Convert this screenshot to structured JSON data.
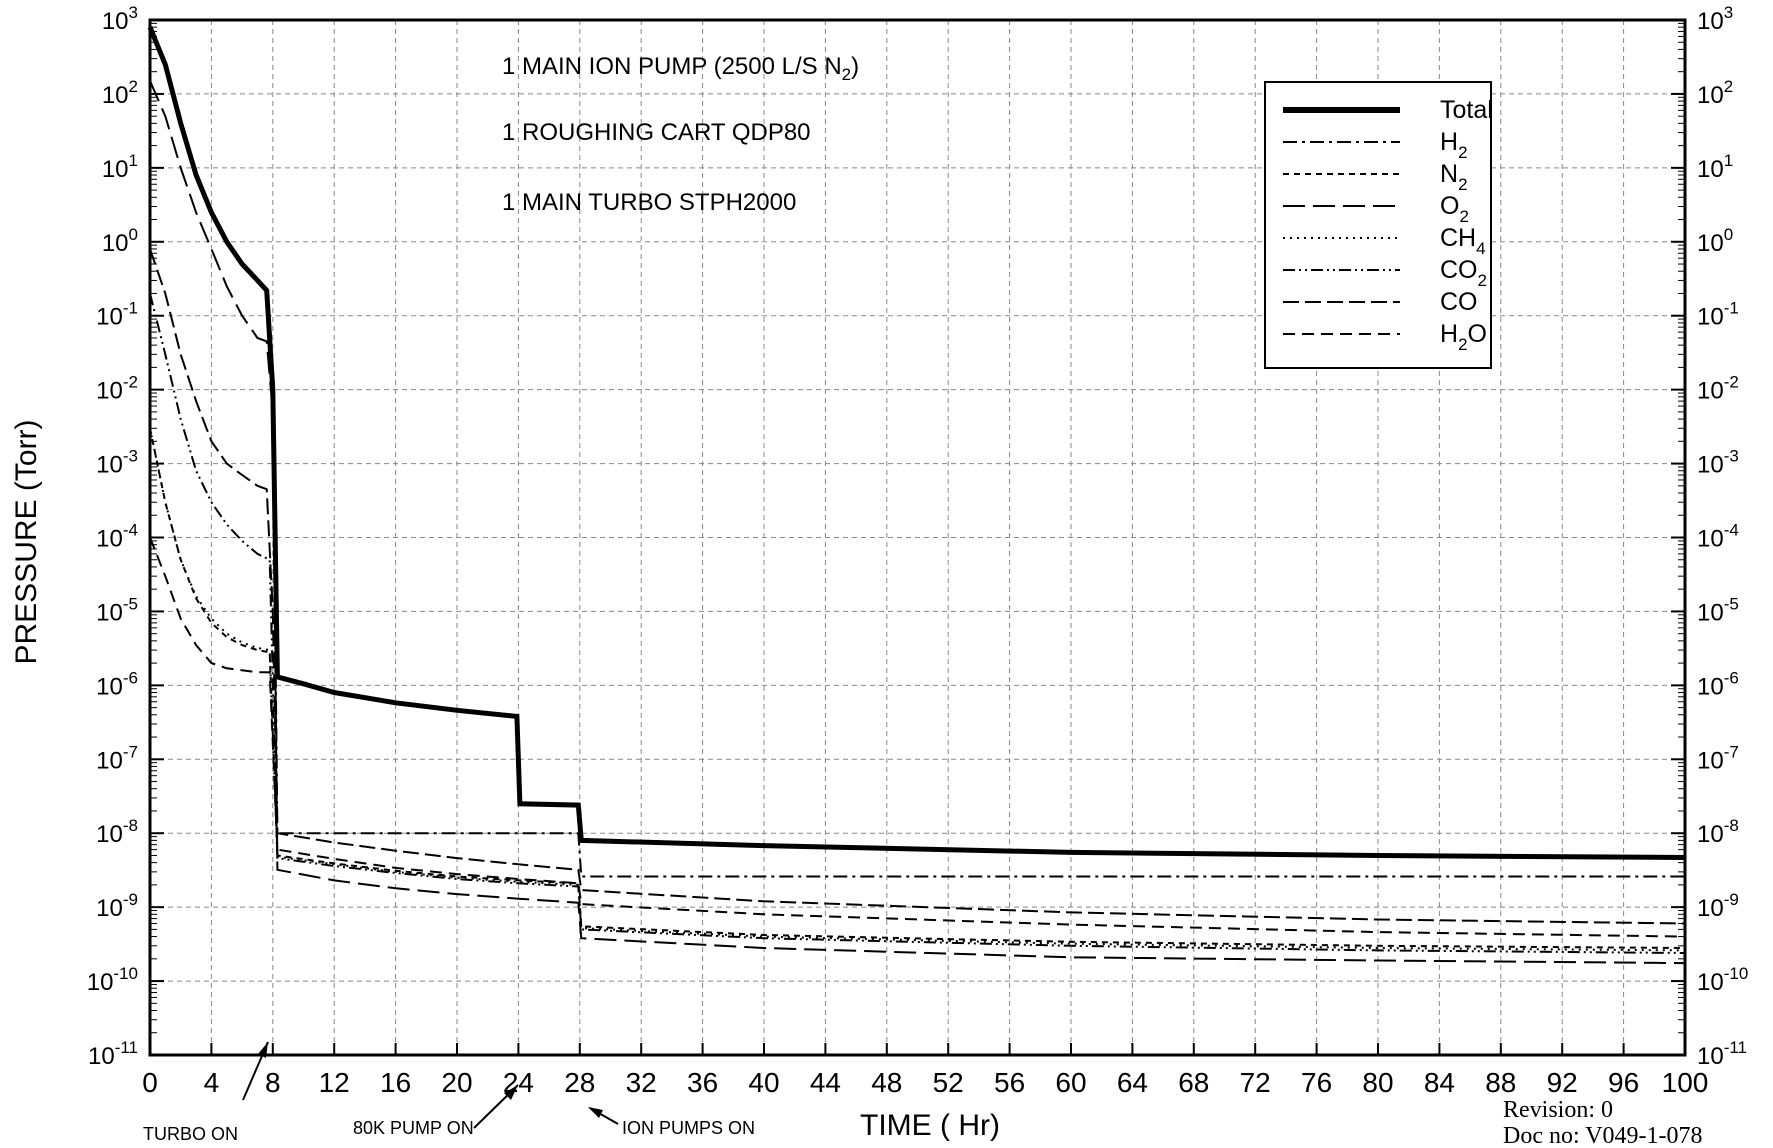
{
  "chart_data": {
    "type": "line",
    "y_scale": "log",
    "ylabel": "PRESSURE (Torr)",
    "xlabel": "TIME ( Hr)",
    "xlim": [
      0,
      100
    ],
    "ylim": [
      1e-11,
      1000
    ],
    "grid": true,
    "legend_position": "top-right",
    "x_ticks": [
      "0",
      "4",
      "8",
      "12",
      "16",
      "20",
      "24",
      "28",
      "32",
      "36",
      "40",
      "44",
      "48",
      "52",
      "56",
      "60",
      "64",
      "68",
      "72",
      "76",
      "80",
      "84",
      "88",
      "92",
      "96",
      "100"
    ],
    "y_ticks": [
      {
        "base": "10",
        "exp": "3"
      },
      {
        "base": "10",
        "exp": "2"
      },
      {
        "base": "10",
        "exp": "1"
      },
      {
        "base": "10",
        "exp": "0"
      },
      {
        "base": "10",
        "exp": "-1"
      },
      {
        "base": "10",
        "exp": "-2"
      },
      {
        "base": "10",
        "exp": "-3"
      },
      {
        "base": "10",
        "exp": "-4"
      },
      {
        "base": "10",
        "exp": "-5"
      },
      {
        "base": "10",
        "exp": "-6"
      },
      {
        "base": "10",
        "exp": "-7"
      },
      {
        "base": "10",
        "exp": "-8"
      },
      {
        "base": "10",
        "exp": "-9"
      },
      {
        "base": "10",
        "exp": "-10"
      },
      {
        "base": "10",
        "exp": "-11"
      }
    ],
    "notes": {
      "line1_pre": "1 MAIN ION PUMP (2500 L/S N",
      "line1_sub": "2",
      "line1_post": ")",
      "line2": "1 ROUGHING CART QDP80",
      "line3": "1 MAIN TURBO STPH2000"
    },
    "event_labels": {
      "turbo": "TURBO ON",
      "pump80k": "80K PUMP ON",
      "ionpumps": "ION PUMPS ON"
    },
    "revision": "Revision: 0",
    "doc_no": "Doc no: V049-1-078",
    "series": [
      {
        "name": "Total",
        "base": "Total",
        "sub": "",
        "style": "thick",
        "points": [
          [
            0,
            800
          ],
          [
            1,
            250
          ],
          [
            2,
            40
          ],
          [
            3,
            8
          ],
          [
            4,
            2.5
          ],
          [
            5,
            1
          ],
          [
            6,
            0.5
          ],
          [
            7,
            0.3
          ],
          [
            7.6,
            0.22
          ],
          [
            8,
            0.01
          ],
          [
            8.3,
            1.3e-06
          ],
          [
            10,
            1.05e-06
          ],
          [
            12,
            8e-07
          ],
          [
            16,
            5.8e-07
          ],
          [
            20,
            4.6e-07
          ],
          [
            23.9,
            3.8e-07
          ],
          [
            24.1,
            2.5e-08
          ],
          [
            27.9,
            2.4e-08
          ],
          [
            28.1,
            8e-09
          ],
          [
            40,
            6.8e-09
          ],
          [
            60,
            5.5e-09
          ],
          [
            80,
            5e-09
          ],
          [
            100,
            4.7e-09
          ]
        ]
      },
      {
        "name": "H2",
        "base": "H",
        "sub": "2",
        "style": "dashdot",
        "points": [
          [
            0,
            800
          ],
          [
            1,
            250
          ],
          [
            2,
            40
          ],
          [
            3,
            8
          ],
          [
            4,
            2.5
          ],
          [
            5,
            1
          ],
          [
            6,
            0.5
          ],
          [
            7,
            0.3
          ],
          [
            7.6,
            0.22
          ],
          [
            8,
            0.01
          ],
          [
            8.3,
            1e-08
          ],
          [
            24,
            1e-08
          ],
          [
            27.9,
            1e-08
          ],
          [
            28.1,
            2.6e-09
          ],
          [
            100,
            2.6e-09
          ]
        ]
      },
      {
        "name": "N2",
        "base": "N",
        "sub": "2",
        "style": "shortdash",
        "points": [
          [
            0,
            0.003
          ],
          [
            1,
            0.0003
          ],
          [
            2,
            5e-05
          ],
          [
            3,
            1.5e-05
          ],
          [
            4,
            7e-06
          ],
          [
            5,
            4.5e-06
          ],
          [
            6,
            3.5e-06
          ],
          [
            7,
            3e-06
          ],
          [
            7.8,
            2.8e-06
          ],
          [
            8.3,
            5e-09
          ],
          [
            12,
            3.9e-09
          ],
          [
            16,
            3.1e-09
          ],
          [
            20,
            2.6e-09
          ],
          [
            24,
            2.3e-09
          ],
          [
            27.9,
            2.1e-09
          ],
          [
            28.1,
            5.5e-10
          ],
          [
            40,
            4.2e-10
          ],
          [
            60,
            3.4e-10
          ],
          [
            80,
            3e-10
          ],
          [
            100,
            2.8e-10
          ]
        ]
      },
      {
        "name": "O2",
        "base": "O",
        "sub": "2",
        "style": "longdash",
        "points": [
          [
            0,
            150
          ],
          [
            1,
            50
          ],
          [
            2,
            10
          ],
          [
            3,
            2.5
          ],
          [
            4,
            0.8
          ],
          [
            5,
            0.25
          ],
          [
            6,
            0.1
          ],
          [
            7,
            0.05
          ],
          [
            7.6,
            0.045
          ],
          [
            8,
            0.005
          ],
          [
            8.3,
            3.2e-09
          ],
          [
            12,
            2.3e-09
          ],
          [
            16,
            1.8e-09
          ],
          [
            20,
            1.5e-09
          ],
          [
            24,
            1.3e-09
          ],
          [
            27.9,
            1.15e-09
          ],
          [
            28.1,
            3.8e-10
          ],
          [
            40,
            2.8e-10
          ],
          [
            60,
            2.1e-10
          ],
          [
            80,
            1.9e-10
          ],
          [
            100,
            1.75e-10
          ]
        ]
      },
      {
        "name": "CH4",
        "base": "CH",
        "sub": "4",
        "style": "dotted",
        "points": [
          [
            0,
            0.003
          ],
          [
            1,
            0.0003
          ],
          [
            2,
            5e-05
          ],
          [
            3,
            1.6e-05
          ],
          [
            4,
            8e-06
          ],
          [
            5,
            5e-06
          ],
          [
            6,
            3.8e-06
          ],
          [
            7,
            3.2e-06
          ],
          [
            7.8,
            3e-06
          ],
          [
            8.3,
            4.8e-09
          ],
          [
            12,
            3.8e-09
          ],
          [
            16,
            3e-09
          ],
          [
            20,
            2.5e-09
          ],
          [
            24,
            2.2e-09
          ],
          [
            27.9,
            2e-09
          ],
          [
            28.1,
            5.2e-10
          ],
          [
            40,
            4e-10
          ],
          [
            60,
            3.2e-10
          ],
          [
            80,
            2.8e-10
          ],
          [
            100,
            2.6e-10
          ]
        ]
      },
      {
        "name": "CO2",
        "base": "CO",
        "sub": "2",
        "style": "dashdotdot",
        "points": [
          [
            0,
            0.2
          ],
          [
            1,
            0.03
          ],
          [
            2,
            0.004
          ],
          [
            3,
            0.0008
          ],
          [
            4,
            0.0003
          ],
          [
            5,
            0.00015
          ],
          [
            6,
            9e-05
          ],
          [
            7,
            6e-05
          ],
          [
            7.8,
            5e-05
          ],
          [
            8.3,
            4.6e-09
          ],
          [
            12,
            3.6e-09
          ],
          [
            16,
            2.9e-09
          ],
          [
            20,
            2.4e-09
          ],
          [
            24,
            2.1e-09
          ],
          [
            27.9,
            1.9e-09
          ],
          [
            28.1,
            5e-10
          ],
          [
            40,
            3.8e-10
          ],
          [
            60,
            3e-10
          ],
          [
            80,
            2.6e-10
          ],
          [
            100,
            2.4e-10
          ]
        ]
      },
      {
        "name": "CO",
        "base": "CO",
        "sub": "",
        "style": "meddash",
        "points": [
          [
            0,
            0.8
          ],
          [
            1,
            0.2
          ],
          [
            2,
            0.03
          ],
          [
            3,
            0.007
          ],
          [
            4,
            0.002
          ],
          [
            5,
            0.001
          ],
          [
            6,
            0.0007
          ],
          [
            7,
            0.0005
          ],
          [
            7.6,
            0.00045
          ],
          [
            8,
            1e-05
          ],
          [
            8.3,
            1e-08
          ],
          [
            12,
            7.5e-09
          ],
          [
            16,
            5.8e-09
          ],
          [
            20,
            4.6e-09
          ],
          [
            24,
            3.8e-09
          ],
          [
            27.9,
            3.2e-09
          ],
          [
            28.1,
            1.7e-09
          ],
          [
            40,
            1.2e-09
          ],
          [
            60,
            8.5e-10
          ],
          [
            80,
            6.8e-10
          ],
          [
            100,
            6e-10
          ]
        ]
      },
      {
        "name": "H2O",
        "base": "H",
        "sub": "2",
        "post": "O",
        "style": "dashed",
        "points": [
          [
            0,
            0.0001
          ],
          [
            1,
            3e-05
          ],
          [
            2,
            8e-06
          ],
          [
            3,
            3.5e-06
          ],
          [
            4,
            2e-06
          ],
          [
            5,
            1.7e-06
          ],
          [
            6,
            1.6e-06
          ],
          [
            7,
            1.5e-06
          ],
          [
            7.8,
            1.5e-06
          ],
          [
            8.3,
            6e-09
          ],
          [
            12,
            4.5e-09
          ],
          [
            16,
            3.4e-09
          ],
          [
            20,
            2.8e-09
          ],
          [
            24,
            2.4e-09
          ],
          [
            27.9,
            2.1e-09
          ],
          [
            28.1,
            1.1e-09
          ],
          [
            40,
            8e-10
          ],
          [
            60,
            5.8e-10
          ],
          [
            80,
            4.6e-10
          ],
          [
            100,
            4e-10
          ]
        ]
      }
    ]
  }
}
